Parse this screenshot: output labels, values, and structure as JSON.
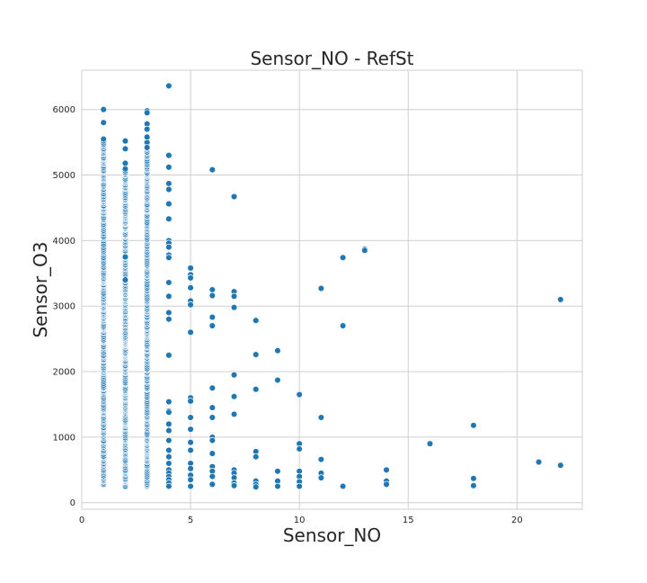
{
  "chart_data": {
    "type": "scatter",
    "title": "Sensor_NO - RefSt",
    "xlabel": "Sensor_NO",
    "ylabel": "Sensor_O3",
    "xlim": [
      0,
      23
    ],
    "ylim": [
      -100,
      6600
    ],
    "xticks": [
      0,
      5,
      10,
      15,
      20
    ],
    "yticks": [
      0,
      1000,
      2000,
      3000,
      4000,
      5000,
      6000
    ],
    "grid": true,
    "color": "#1f77b4",
    "dense_columns": [
      {
        "x": 1,
        "ymin": 280,
        "ymax": 5550
      },
      {
        "x": 2,
        "ymin": 250,
        "ymax": 5100
      },
      {
        "x": 3,
        "ymin": 250,
        "ymax": 5500
      }
    ],
    "points": [
      {
        "x": 1,
        "y": 6000
      },
      {
        "x": 1,
        "y": 5800
      },
      {
        "x": 2,
        "y": 5520
      },
      {
        "x": 2,
        "y": 5400
      },
      {
        "x": 2,
        "y": 5180
      },
      {
        "x": 2,
        "y": 3750
      },
      {
        "x": 2,
        "y": 3400
      },
      {
        "x": 3,
        "y": 5980
      },
      {
        "x": 3,
        "y": 5950
      },
      {
        "x": 3,
        "y": 5780
      },
      {
        "x": 3,
        "y": 5700
      },
      {
        "x": 3,
        "y": 5580
      },
      {
        "x": 3,
        "y": 5420
      },
      {
        "x": 4,
        "y": 6360
      },
      {
        "x": 4,
        "y": 5300
      },
      {
        "x": 4,
        "y": 5120
      },
      {
        "x": 4,
        "y": 4870
      },
      {
        "x": 4,
        "y": 4780
      },
      {
        "x": 4,
        "y": 4560
      },
      {
        "x": 4,
        "y": 4330
      },
      {
        "x": 4,
        "y": 4000
      },
      {
        "x": 4,
        "y": 3960
      },
      {
        "x": 4,
        "y": 3900
      },
      {
        "x": 4,
        "y": 3780
      },
      {
        "x": 4,
        "y": 3740
      },
      {
        "x": 4,
        "y": 3360
      },
      {
        "x": 4,
        "y": 3150
      },
      {
        "x": 4,
        "y": 2900
      },
      {
        "x": 4,
        "y": 2800
      },
      {
        "x": 4,
        "y": 2250
      },
      {
        "x": 4,
        "y": 1540
      },
      {
        "x": 4,
        "y": 1400
      },
      {
        "x": 4,
        "y": 1380
      },
      {
        "x": 4,
        "y": 1200
      },
      {
        "x": 4,
        "y": 1100
      },
      {
        "x": 4,
        "y": 950
      },
      {
        "x": 4,
        "y": 800
      },
      {
        "x": 4,
        "y": 700
      },
      {
        "x": 4,
        "y": 600
      },
      {
        "x": 4,
        "y": 500
      },
      {
        "x": 4,
        "y": 450
      },
      {
        "x": 4,
        "y": 400
      },
      {
        "x": 4,
        "y": 350
      },
      {
        "x": 4,
        "y": 300
      },
      {
        "x": 4,
        "y": 250
      },
      {
        "x": 5,
        "y": 3580
      },
      {
        "x": 5,
        "y": 3480
      },
      {
        "x": 5,
        "y": 3430
      },
      {
        "x": 5,
        "y": 3280
      },
      {
        "x": 5,
        "y": 3080
      },
      {
        "x": 5,
        "y": 3020
      },
      {
        "x": 5,
        "y": 2600
      },
      {
        "x": 5,
        "y": 1600
      },
      {
        "x": 5,
        "y": 1550
      },
      {
        "x": 5,
        "y": 1300
      },
      {
        "x": 5,
        "y": 1120
      },
      {
        "x": 5,
        "y": 920
      },
      {
        "x": 5,
        "y": 800
      },
      {
        "x": 5,
        "y": 600
      },
      {
        "x": 5,
        "y": 520
      },
      {
        "x": 5,
        "y": 420
      },
      {
        "x": 5,
        "y": 350
      },
      {
        "x": 5,
        "y": 250
      },
      {
        "x": 6,
        "y": 5080
      },
      {
        "x": 6,
        "y": 3250
      },
      {
        "x": 6,
        "y": 3160
      },
      {
        "x": 6,
        "y": 2830
      },
      {
        "x": 6,
        "y": 2700
      },
      {
        "x": 6,
        "y": 1750
      },
      {
        "x": 6,
        "y": 1450
      },
      {
        "x": 6,
        "y": 1300
      },
      {
        "x": 6,
        "y": 1000
      },
      {
        "x": 6,
        "y": 950
      },
      {
        "x": 6,
        "y": 750
      },
      {
        "x": 6,
        "y": 550
      },
      {
        "x": 6,
        "y": 480
      },
      {
        "x": 6,
        "y": 400
      },
      {
        "x": 6,
        "y": 280
      },
      {
        "x": 7,
        "y": 4670
      },
      {
        "x": 7,
        "y": 3220
      },
      {
        "x": 7,
        "y": 3150
      },
      {
        "x": 7,
        "y": 2980
      },
      {
        "x": 7,
        "y": 1950
      },
      {
        "x": 7,
        "y": 1620
      },
      {
        "x": 7,
        "y": 1350
      },
      {
        "x": 7,
        "y": 500
      },
      {
        "x": 7,
        "y": 450
      },
      {
        "x": 7,
        "y": 380
      },
      {
        "x": 7,
        "y": 300
      },
      {
        "x": 7,
        "y": 260
      },
      {
        "x": 8,
        "y": 2780
      },
      {
        "x": 8,
        "y": 2260
      },
      {
        "x": 8,
        "y": 1730
      },
      {
        "x": 8,
        "y": 780
      },
      {
        "x": 8,
        "y": 700
      },
      {
        "x": 8,
        "y": 330
      },
      {
        "x": 8,
        "y": 280
      },
      {
        "x": 8,
        "y": 240
      },
      {
        "x": 9,
        "y": 2320
      },
      {
        "x": 9,
        "y": 1870
      },
      {
        "x": 9,
        "y": 480
      },
      {
        "x": 9,
        "y": 330
      },
      {
        "x": 9,
        "y": 250
      },
      {
        "x": 10,
        "y": 1650
      },
      {
        "x": 10,
        "y": 900
      },
      {
        "x": 10,
        "y": 820
      },
      {
        "x": 10,
        "y": 480
      },
      {
        "x": 10,
        "y": 400
      },
      {
        "x": 10,
        "y": 320
      },
      {
        "x": 10,
        "y": 250
      },
      {
        "x": 11,
        "y": 3270
      },
      {
        "x": 11,
        "y": 1300
      },
      {
        "x": 11,
        "y": 660
      },
      {
        "x": 11,
        "y": 450
      },
      {
        "x": 11,
        "y": 380
      },
      {
        "x": 12,
        "y": 3740
      },
      {
        "x": 12,
        "y": 2700
      },
      {
        "x": 12,
        "y": 250
      },
      {
        "x": 13,
        "y": 3870
      },
      {
        "x": 13,
        "y": 3850
      },
      {
        "x": 14,
        "y": 500
      },
      {
        "x": 14,
        "y": 330
      },
      {
        "x": 14,
        "y": 280
      },
      {
        "x": 16,
        "y": 900
      },
      {
        "x": 18,
        "y": 1180
      },
      {
        "x": 18,
        "y": 370
      },
      {
        "x": 18,
        "y": 260
      },
      {
        "x": 21,
        "y": 620
      },
      {
        "x": 22,
        "y": 3100
      },
      {
        "x": 22,
        "y": 570
      }
    ]
  }
}
